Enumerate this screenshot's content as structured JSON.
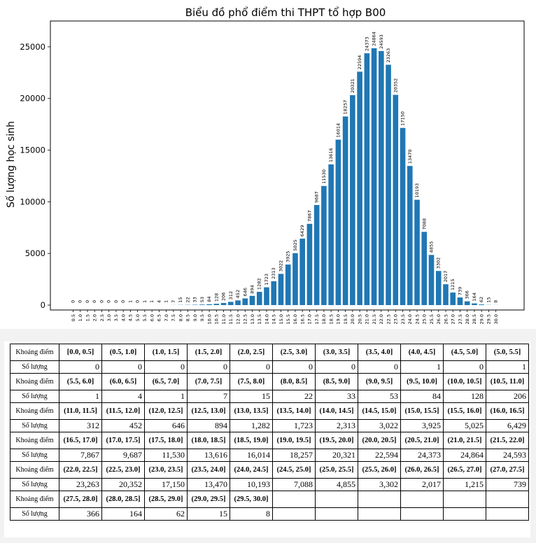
{
  "chart_data": {
    "type": "bar",
    "title": "Biểu đồ phổ điểm thi THPT tổ hợp B00",
    "xlabel": "",
    "ylabel": "Số lượng học sinh",
    "ylim": [
      0,
      27500
    ],
    "yticks": [
      0,
      5000,
      10000,
      15000,
      20000,
      25000
    ],
    "grid": false,
    "bar_color": "#1f77b4",
    "categories": [
      "0.5",
      "1.0",
      "1.5",
      "2.0",
      "2.5",
      "3.0",
      "3.5",
      "4.0",
      "4.5",
      "5.0",
      "5.5",
      "6.0",
      "6.5",
      "7.0",
      "7.5",
      "8.0",
      "8.5",
      "9.0",
      "9.5",
      "10.0",
      "10.5",
      "11.0",
      "11.5",
      "12.0",
      "12.5",
      "13.0",
      "13.5",
      "14.0",
      "14.5",
      "15.0",
      "15.5",
      "16.0",
      "16.5",
      "17.0",
      "17.5",
      "18.0",
      "18.5",
      "19.0",
      "19.5",
      "20.0",
      "20.5",
      "21.0",
      "21.5",
      "22.0",
      "22.5",
      "23.0",
      "23.5",
      "24.0",
      "24.5",
      "25.0",
      "25.5",
      "26.0",
      "26.5",
      "27.0",
      "27.5",
      "28.0",
      "28.5",
      "29.0",
      "29.5",
      "30.0"
    ],
    "values": [
      0,
      0,
      0,
      0,
      0,
      0,
      0,
      0,
      1,
      0,
      1,
      1,
      4,
      1,
      7,
      15,
      22,
      33,
      53,
      84,
      128,
      206,
      312,
      452,
      646,
      894,
      1282,
      1723,
      2313,
      3022,
      3925,
      5025,
      6429,
      7867,
      9687,
      11530,
      13616,
      16014,
      18257,
      20321,
      22594,
      24373,
      24864,
      24593,
      23263,
      20352,
      17150,
      13470,
      10193,
      7088,
      4855,
      3302,
      2017,
      1215,
      739,
      366,
      164,
      62,
      15,
      8
    ]
  },
  "table": {
    "header_range": "Khoảng điểm",
    "header_count": "Số lượng",
    "rows": [
      {
        "ranges": [
          "[0.0, 0.5]",
          "(0.5, 1.0]",
          "(1.0, 1.5]",
          "(1.5, 2.0]",
          "(2.0, 2.5]",
          "(2.5, 3.0]",
          "(3.0, 3.5]",
          "(3.5, 4.0]",
          "(4.0, 4.5]",
          "(4.5, 5.0]",
          "(5.0, 5.5]"
        ],
        "counts": [
          "0",
          "0",
          "0",
          "0",
          "0",
          "0",
          "0",
          "0",
          "1",
          "0",
          "1"
        ]
      },
      {
        "ranges": [
          "(5.5, 6.0]",
          "(6.0, 6.5]",
          "(6.5, 7.0]",
          "(7.0, 7.5]",
          "(7.5, 8.0]",
          "(8.0, 8.5]",
          "(8.5, 9.0]",
          "(9.0, 9.5]",
          "(9.5, 10.0]",
          "(10.0, 10.5]",
          "(10.5, 11.0]"
        ],
        "counts": [
          "1",
          "4",
          "1",
          "7",
          "15",
          "22",
          "33",
          "53",
          "84",
          "128",
          "206"
        ]
      },
      {
        "ranges": [
          "(11.0, 11.5]",
          "(11.5, 12.0]",
          "(12.0, 12.5]",
          "(12.5, 13.0]",
          "(13.0, 13.5]",
          "(13.5, 14.0]",
          "(14.0, 14.5]",
          "(14.5, 15.0]",
          "(15.0, 15.5]",
          "(15.5, 16.0]",
          "(16.0, 16.5]"
        ],
        "counts": [
          "312",
          "452",
          "646",
          "894",
          "1,282",
          "1,723",
          "2,313",
          "3,022",
          "3,925",
          "5,025",
          "6,429"
        ]
      },
      {
        "ranges": [
          "(16.5, 17.0]",
          "(17.0, 17.5]",
          "(17.5, 18.0]",
          "(18.0, 18.5]",
          "(18.5, 19.0]",
          "(19.0, 19.5]",
          "(19.5, 20.0]",
          "(20.0, 20.5]",
          "(20.5, 21.0]",
          "(21.0, 21.5]",
          "(21.5, 22.0]"
        ],
        "counts": [
          "7,867",
          "9,687",
          "11,530",
          "13,616",
          "16,014",
          "18,257",
          "20,321",
          "22,594",
          "24,373",
          "24,864",
          "24,593"
        ]
      },
      {
        "ranges": [
          "(22.0, 22.5]",
          "(22.5, 23.0]",
          "(23.0, 23.5]",
          "(23.5, 24.0]",
          "(24.0, 24.5]",
          "(24.5, 25.0]",
          "(25.0, 25.5]",
          "(25.5, 26.0]",
          "(26.0, 26.5]",
          "(26.5, 27.0]",
          "(27.0, 27.5]"
        ],
        "counts": [
          "23,263",
          "20,352",
          "17,150",
          "13,470",
          "10,193",
          "7,088",
          "4,855",
          "3,302",
          "2,017",
          "1,215",
          "739"
        ]
      },
      {
        "ranges": [
          "(27.5, 28.0]",
          "(28.0, 28.5]",
          "(28.5, 29.0]",
          "(29.0, 29.5]",
          "(29.5, 30.0]",
          "",
          "",
          "",
          "",
          "",
          ""
        ],
        "counts": [
          "366",
          "164",
          "62",
          "15",
          "8",
          "",
          "",
          "",
          "",
          "",
          ""
        ]
      }
    ]
  }
}
